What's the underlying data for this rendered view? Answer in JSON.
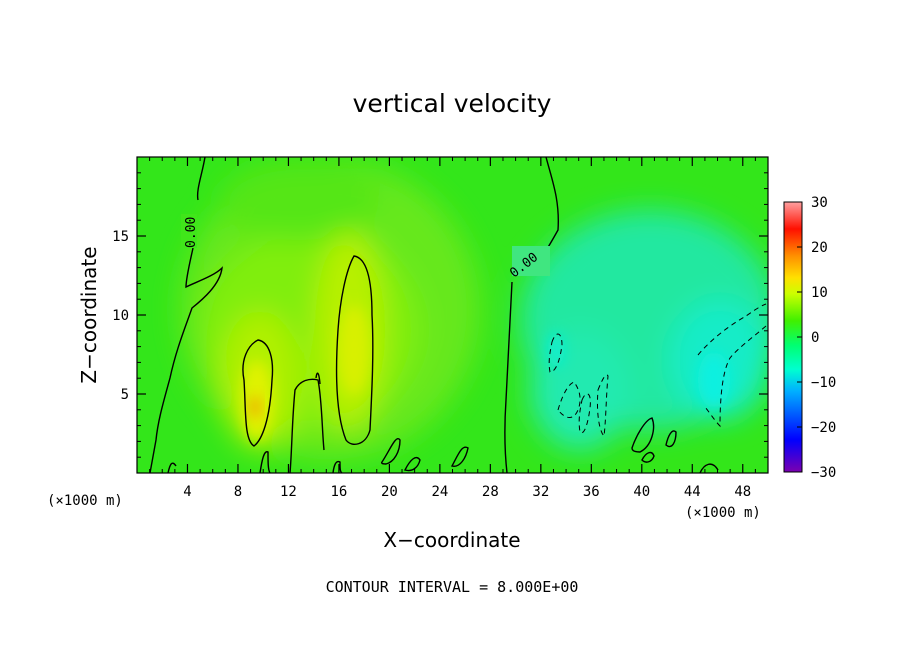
{
  "chart_data": {
    "type": "heatmap",
    "title": "vertical velocity",
    "xlabel": "X−coordinate",
    "ylabel": "Z−coordinate",
    "x_unit": "(×1000 m)",
    "x_unit_right": "(×1000 m)",
    "xlim": [
      0,
      50
    ],
    "ylim": [
      0,
      20
    ],
    "x_ticks": [
      4,
      8,
      12,
      16,
      20,
      24,
      28,
      32,
      36,
      40,
      44,
      48
    ],
    "x_tick_labels": [
      "4",
      "8",
      "12",
      "16",
      "20",
      "24",
      "28",
      "32",
      "36",
      "40",
      "44",
      "48"
    ],
    "y_ticks": [
      5,
      10,
      15
    ],
    "y_tick_labels": [
      "5",
      "10",
      "15"
    ],
    "colorbar": {
      "range": [
        -30,
        30
      ],
      "ticks": [
        30,
        20,
        10,
        0,
        -10,
        -20,
        -30
      ],
      "tick_labels": [
        "30",
        "20",
        "10",
        "0",
        "−10",
        "−20",
        "−30"
      ],
      "colors": [
        "#7b00b0",
        "#0000ff",
        "#00a0ff",
        "#00ffd0",
        "#00ff60",
        "#00e000",
        "#80ff00",
        "#ffff00",
        "#ff9000",
        "#ff0000",
        "#ff9090"
      ]
    },
    "contour_labels": [
      "0.00",
      "0.00"
    ],
    "contour_interval_text": "CONTOUR INTERVAL = 8.000E+00",
    "features": [
      {
        "name": "updraft core",
        "x": 9.5,
        "z": 4.5,
        "value": 10
      },
      {
        "name": "updraft column",
        "x": 17.0,
        "z": 8.0,
        "value": 8
      },
      {
        "name": "downdraft region",
        "x": 46.0,
        "z": 6.0,
        "value": -6
      },
      {
        "name": "downdraft region",
        "x": 34.0,
        "z": 5.0,
        "value": -4
      }
    ]
  }
}
